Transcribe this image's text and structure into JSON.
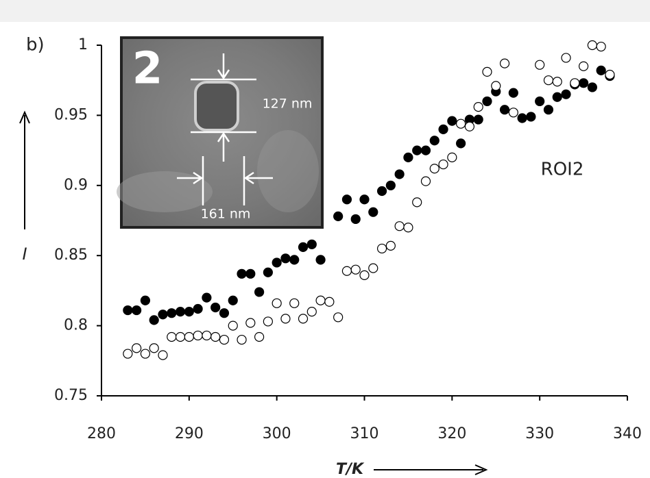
{
  "chart_data": {
    "type": "scatter",
    "panel_label": "b)",
    "x_label": "T/K",
    "y_label": "I",
    "annotation": "ROI2",
    "inset": {
      "label": "2",
      "height_label": "127 nm",
      "width_label": "161 nm"
    },
    "xlim": [
      280,
      340
    ],
    "xticks": [
      280,
      290,
      300,
      310,
      320,
      330,
      340
    ],
    "ylim": [
      0.75,
      1
    ],
    "yticks": [
      0.75,
      0.8,
      0.85,
      0.9,
      0.95,
      1
    ],
    "series": [
      {
        "marker": "filled",
        "color": "#000000",
        "x": [
          283,
          284,
          285,
          286,
          287,
          288,
          289,
          290,
          291,
          292,
          293,
          294,
          295,
          296,
          297,
          298,
          299,
          300,
          301,
          302,
          303,
          304,
          305,
          307,
          308,
          309,
          310,
          311,
          312,
          313,
          314,
          315,
          316,
          317,
          318,
          319,
          320,
          321,
          322,
          323,
          324,
          325,
          326,
          327,
          328,
          329,
          330,
          331,
          332,
          333,
          334,
          335,
          336,
          337,
          338
        ],
        "values": [
          0.811,
          0.811,
          0.818,
          0.804,
          0.808,
          0.809,
          0.81,
          0.81,
          0.812,
          0.82,
          0.813,
          0.809,
          0.818,
          0.837,
          0.837,
          0.824,
          0.838,
          0.845,
          0.848,
          0.847,
          0.856,
          0.858,
          0.847,
          0.878,
          0.89,
          0.876,
          0.89,
          0.881,
          0.896,
          0.9,
          0.908,
          0.92,
          0.925,
          0.925,
          0.932,
          0.94,
          0.946,
          0.93,
          0.947,
          0.947,
          0.96,
          0.967,
          0.954,
          0.966,
          0.948,
          0.949,
          0.96,
          0.954,
          0.963,
          0.965,
          0.972,
          0.973,
          0.97,
          0.982,
          0.978
        ]
      },
      {
        "marker": "open",
        "color": "#000000",
        "x": [
          283,
          284,
          285,
          286,
          287,
          288,
          289,
          290,
          291,
          292,
          293,
          294,
          295,
          296,
          297,
          298,
          299,
          300,
          301,
          302,
          303,
          304,
          305,
          306,
          307,
          308,
          309,
          310,
          311,
          312,
          313,
          314,
          315,
          316,
          317,
          318,
          319,
          320,
          321,
          322,
          323,
          324,
          325,
          326,
          327,
          330,
          331,
          332,
          333,
          334,
          335,
          336,
          337,
          338
        ],
        "values": [
          0.78,
          0.784,
          0.78,
          0.784,
          0.779,
          0.792,
          0.792,
          0.792,
          0.793,
          0.793,
          0.792,
          0.79,
          0.8,
          0.79,
          0.802,
          0.792,
          0.803,
          0.816,
          0.805,
          0.816,
          0.805,
          0.81,
          0.818,
          0.817,
          0.806,
          0.839,
          0.84,
          0.836,
          0.841,
          0.855,
          0.857,
          0.871,
          0.87,
          0.888,
          0.903,
          0.912,
          0.915,
          0.92,
          0.944,
          0.942,
          0.956,
          0.981,
          0.971,
          0.987,
          0.952,
          0.986,
          0.975,
          0.974,
          0.991,
          0.973,
          0.985,
          1.0,
          0.999,
          0.979
        ]
      }
    ]
  }
}
